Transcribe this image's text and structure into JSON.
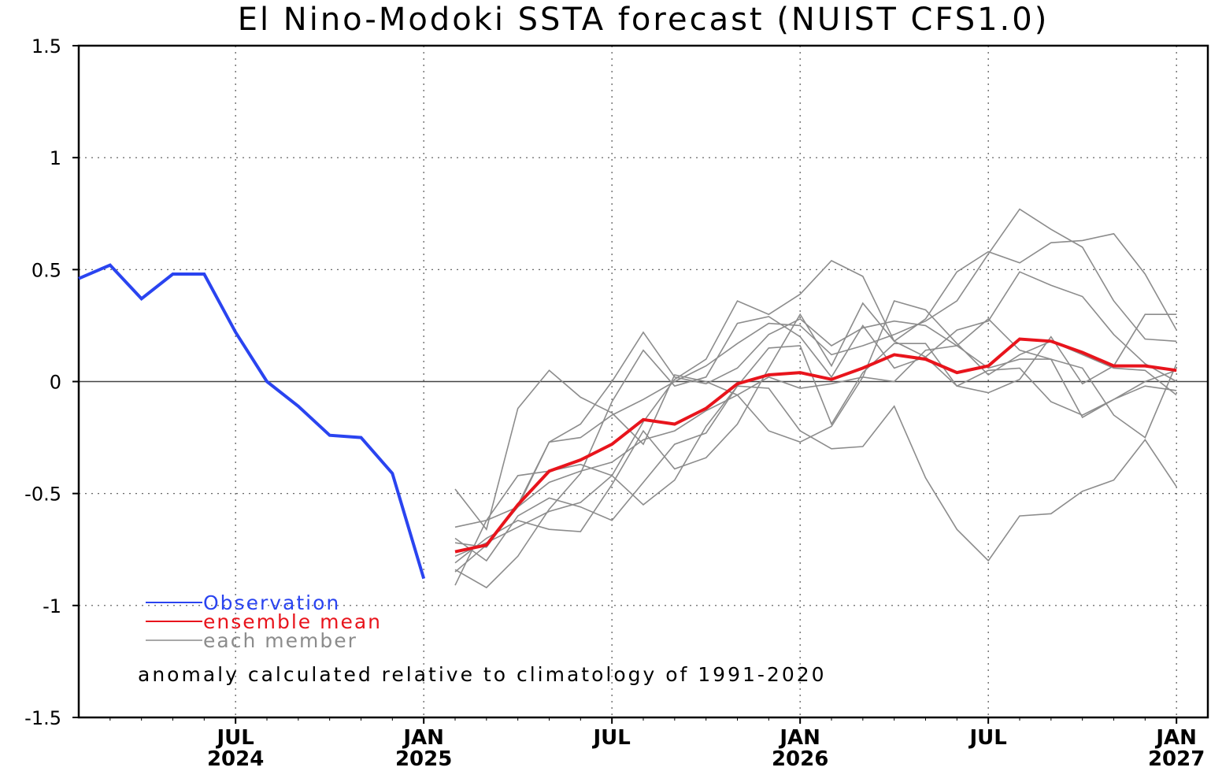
{
  "chart_data": {
    "type": "line",
    "title": "El Nino-Modoki SSTA forecast (NUIST CFS1.0)",
    "xlabel": "",
    "ylabel": "",
    "ylim": [
      -1.5,
      1.5
    ],
    "xlim": [
      "2024-02",
      "2027-02"
    ],
    "y_ticks": [
      "1.5",
      "1",
      "0.5",
      "0",
      "-0.5",
      "-1",
      "-1.5"
    ],
    "y_tick_values": [
      1.5,
      1,
      0.5,
      0,
      -0.5,
      -1,
      -1.5
    ],
    "x_ticks": [
      {
        "month": "JUL",
        "year": "2024",
        "x": "2024-07"
      },
      {
        "month": "JAN",
        "year": "2025",
        "x": "2025-01"
      },
      {
        "month": "JUL",
        "year": "",
        "x": "2025-07"
      },
      {
        "month": "JAN",
        "year": "2026",
        "x": "2026-01"
      },
      {
        "month": "JUL",
        "year": "",
        "x": "2026-07"
      },
      {
        "month": "JAN",
        "year": "2027",
        "x": "2027-01"
      }
    ],
    "grid": true,
    "legend_position": "bottom-left",
    "annotation": "anomaly calculated relative to climatology of 1991-2020",
    "series": [
      {
        "name": "Observation",
        "color": "#2a44f0",
        "width": 4,
        "x": [
          "2024-02",
          "2024-03",
          "2024-04",
          "2024-05",
          "2024-06",
          "2024-07",
          "2024-08",
          "2024-09",
          "2024-10",
          "2024-11",
          "2024-12",
          "2025-01"
        ],
        "values": [
          0.46,
          0.52,
          0.37,
          0.48,
          0.48,
          0.22,
          0.0,
          -0.11,
          -0.24,
          -0.25,
          -0.41,
          -0.88
        ]
      },
      {
        "name": "ensemble mean",
        "color": "#e8141c",
        "width": 4,
        "x": [
          "2025-02",
          "2025-03",
          "2025-04",
          "2025-05",
          "2025-06",
          "2025-07",
          "2025-08",
          "2025-09",
          "2025-10",
          "2025-11",
          "2025-12",
          "2026-01",
          "2026-02",
          "2026-03",
          "2026-04",
          "2026-05",
          "2026-06",
          "2026-07",
          "2026-08",
          "2026-09",
          "2026-10",
          "2026-11",
          "2026-12",
          "2027-01"
        ],
        "values": [
          -0.76,
          -0.73,
          -0.55,
          -0.4,
          -0.35,
          -0.28,
          -0.17,
          -0.19,
          -0.12,
          -0.01,
          0.03,
          0.04,
          0.01,
          0.06,
          0.12,
          0.1,
          0.04,
          0.07,
          0.19,
          0.18,
          0.13,
          0.07,
          0.07,
          0.05
        ]
      },
      {
        "name": "each member",
        "color": "#8c8c8c",
        "width": 1.6,
        "members": [
          [
            -0.65,
            -0.62,
            -0.42,
            -0.4,
            -0.37,
            -0.42,
            -0.55,
            -0.44,
            -0.2,
            -0.02,
            -0.03,
            -0.22,
            -0.3,
            -0.29,
            -0.11,
            -0.43,
            -0.66,
            -0.8,
            -0.6,
            -0.59,
            -0.49,
            -0.44,
            -0.26,
            -0.47
          ],
          [
            -0.48,
            -0.66,
            -0.12,
            0.05,
            -0.07,
            -0.14,
            -0.28,
            0.03,
            0.0,
            -0.06,
            -0.22,
            -0.27,
            -0.2,
            0.02,
            0.36,
            0.32,
            0.17,
            0.03,
            0.12,
            0.18,
            0.12,
            0.06,
            0.05,
            -0.06
          ],
          [
            -0.72,
            -0.74,
            -0.55,
            -0.27,
            -0.25,
            -0.15,
            -0.08,
            0.0,
            0.07,
            0.17,
            0.26,
            0.25,
            0.12,
            0.16,
            0.21,
            0.27,
            0.36,
            0.57,
            0.77,
            0.68,
            0.6,
            0.36,
            0.19,
            0.18
          ],
          [
            -0.81,
            -0.7,
            -0.62,
            -0.66,
            -0.67,
            -0.46,
            -0.22,
            -0.39,
            -0.34,
            -0.19,
            0.06,
            0.3,
            0.07,
            0.35,
            0.18,
            0.11,
            -0.02,
            -0.05,
            0.01,
            0.2,
            -0.01,
            0.07,
            0.3,
            0.3
          ],
          [
            -0.84,
            -0.92,
            -0.78,
            -0.57,
            -0.41,
            -0.09,
            0.14,
            -0.02,
            0.02,
            0.26,
            0.29,
            0.2,
            0.02,
            0.25,
            0.06,
            0.11,
            0.23,
            0.27,
            0.49,
            0.43,
            0.38,
            0.21,
            0.08,
            0.0
          ],
          [
            -0.78,
            -0.72,
            -0.65,
            -0.58,
            -0.54,
            -0.42,
            -0.18,
            0.01,
            0.1,
            0.36,
            0.3,
            0.39,
            0.54,
            0.47,
            0.18,
            0.28,
            0.49,
            0.58,
            0.53,
            0.62,
            0.63,
            0.66,
            0.48,
            0.23
          ],
          [
            -0.91,
            -0.62,
            -0.56,
            -0.27,
            -0.19,
            0.0,
            0.22,
            0.02,
            -0.01,
            0.06,
            0.21,
            0.28,
            0.16,
            0.24,
            0.27,
            0.25,
            0.16,
            0.28,
            0.14,
            0.1,
            0.06,
            -0.15,
            -0.25,
            0.08
          ],
          [
            -0.7,
            -0.8,
            -0.6,
            -0.52,
            -0.56,
            -0.62,
            -0.45,
            -0.28,
            -0.23,
            -0.02,
            0.15,
            0.16,
            -0.19,
            0.04,
            0.17,
            0.17,
            -0.02,
            0.05,
            0.06,
            -0.09,
            -0.15,
            -0.08,
            -0.02,
            -0.04
          ],
          [
            -0.85,
            -0.73,
            -0.56,
            -0.45,
            -0.4,
            -0.36,
            -0.26,
            -0.22,
            -0.13,
            -0.06,
            0.02,
            -0.03,
            -0.01,
            0.02,
            0.0,
            0.14,
            0.16,
            0.06,
            0.1,
            0.1,
            -0.16,
            -0.08,
            0.0,
            0.05
          ]
        ]
      }
    ]
  }
}
